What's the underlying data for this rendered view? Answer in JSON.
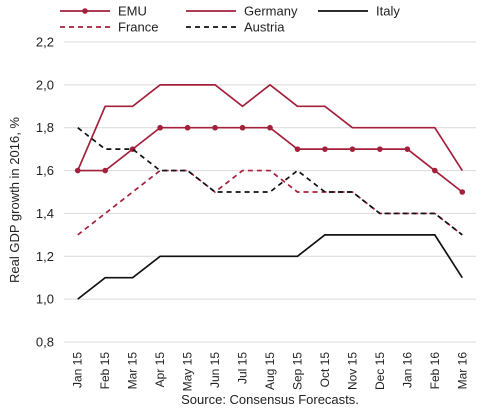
{
  "chart_data": {
    "type": "line",
    "ylabel": "Real GDP growth in 2016, %",
    "source": "Source: Consensus Forecasts.",
    "ylim": [
      0.8,
      2.2
    ],
    "y_ticks": [
      "0,8",
      "1,0",
      "1,2",
      "1,4",
      "1,6",
      "1,8",
      "2,0",
      "2,2"
    ],
    "categories": [
      "Jan 15",
      "Feb 15",
      "Mar 15",
      "Apr 15",
      "May 15",
      "Jun 15",
      "Jul 15",
      "Aug 15",
      "Sep 15",
      "Oct 15",
      "Nov 15",
      "Dec 15",
      "Jan 16",
      "Feb 16",
      "Mar 16"
    ],
    "grid": "horizontal",
    "legend_position": "top",
    "series": [
      {
        "name": "EMU",
        "color": "#a3203a",
        "style": "solid-markers",
        "values": [
          1.6,
          1.6,
          1.7,
          1.8,
          1.8,
          1.8,
          1.8,
          1.8,
          1.7,
          1.7,
          1.7,
          1.7,
          1.7,
          1.6,
          1.5
        ]
      },
      {
        "name": "Germany",
        "color": "#a3203a",
        "style": "solid",
        "values": [
          1.6,
          1.9,
          1.9,
          2.0,
          2.0,
          2.0,
          1.9,
          2.0,
          1.9,
          1.9,
          1.8,
          1.8,
          1.8,
          1.8,
          1.6
        ]
      },
      {
        "name": "Italy",
        "color": "#111111",
        "style": "solid",
        "values": [
          1.0,
          1.1,
          1.1,
          1.2,
          1.2,
          1.2,
          1.2,
          1.2,
          1.2,
          1.3,
          1.3,
          1.3,
          1.3,
          1.3,
          1.1
        ]
      },
      {
        "name": "France",
        "color": "#a3203a",
        "style": "dashed",
        "values": [
          1.3,
          1.4,
          1.5,
          1.6,
          1.6,
          1.5,
          1.6,
          1.6,
          1.5,
          1.5,
          1.5,
          1.4,
          1.4,
          1.4,
          1.3
        ]
      },
      {
        "name": "Austria",
        "color": "#111111",
        "style": "dashed",
        "values": [
          1.8,
          1.7,
          1.7,
          1.6,
          1.6,
          1.5,
          1.5,
          1.5,
          1.6,
          1.5,
          1.5,
          1.4,
          1.4,
          1.4,
          1.3
        ]
      }
    ]
  }
}
